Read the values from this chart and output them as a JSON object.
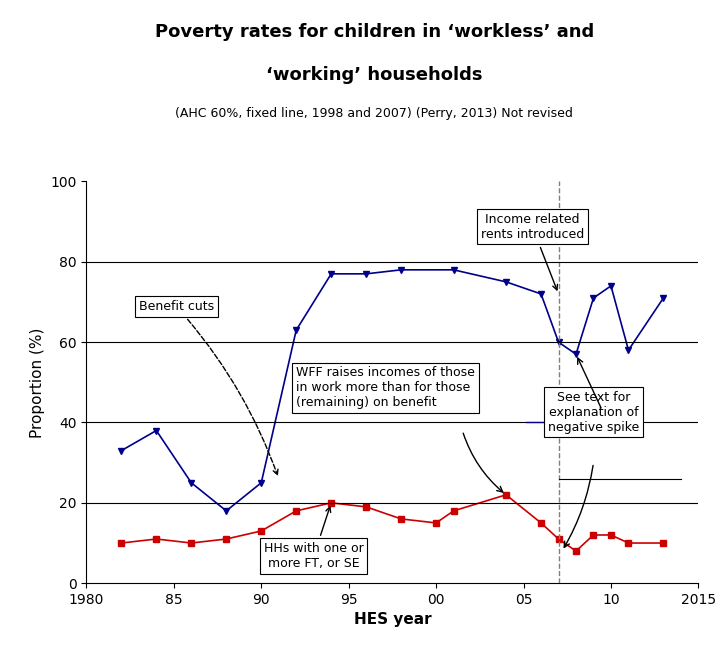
{
  "title_line1": "Poverty rates for children in ‘workless’ and",
  "title_line2": "‘working’ households",
  "subtitle": "(AHC 60%, fixed line, 1998 and 2007) (Perry, 2013) Not revised",
  "xlabel": "HES year",
  "ylabel": "Proportion (%)",
  "xlim": [
    1980,
    2015
  ],
  "ylim": [
    0,
    100
  ],
  "xticks": [
    1980,
    1985,
    1990,
    1995,
    2000,
    2005,
    2010,
    2015
  ],
  "xticklabels": [
    "1980",
    "85",
    "90",
    "95",
    "00",
    "05",
    "10",
    "2015"
  ],
  "yticks": [
    0,
    20,
    40,
    60,
    80,
    100
  ],
  "blue_x": [
    1982,
    1984,
    1986,
    1988,
    1990,
    1992,
    1994,
    1996,
    1998,
    2001,
    2004,
    2006,
    2007,
    2008,
    2009,
    2010,
    2011,
    2013
  ],
  "blue_y": [
    33,
    38,
    25,
    18,
    25,
    63,
    77,
    77,
    78,
    78,
    75,
    72,
    60,
    57,
    71,
    74,
    58,
    71
  ],
  "red_x": [
    1982,
    1984,
    1986,
    1988,
    1990,
    1992,
    1994,
    1996,
    1998,
    2000,
    2001,
    2004,
    2006,
    2007,
    2008,
    2009,
    2010,
    2011,
    2013
  ],
  "red_y": [
    10,
    11,
    10,
    11,
    13,
    18,
    20,
    19,
    16,
    15,
    18,
    22,
    15,
    11,
    8,
    12,
    12,
    10,
    10
  ],
  "blue_color": "#00008B",
  "red_color": "#CC0000",
  "vline_x": 2007,
  "background_color": "#ffffff",
  "hlines_y": [
    20,
    40,
    60,
    80
  ],
  "title_fontsize": 13,
  "subtitle_fontsize": 9,
  "tick_fontsize": 10,
  "annot_fontsize": 9,
  "xlabel_fontsize": 11,
  "ylabel_fontsize": 11
}
